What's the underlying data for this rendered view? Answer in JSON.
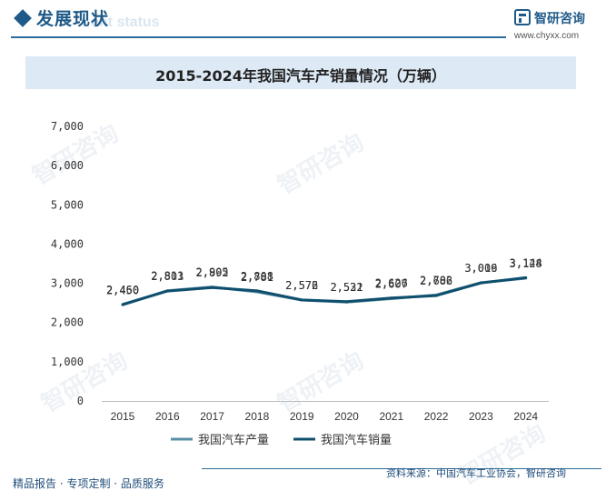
{
  "header": {
    "title_cn": "发展现状",
    "title_en": "ent status",
    "logo_name": "智研咨询",
    "logo_url": "www.chyxx.com"
  },
  "chart_title": "2015-2024年我国汽车产销量情况（万辆）",
  "chart_data": {
    "type": "line",
    "title": "2015-2024年我国汽车产销量情况（万辆）",
    "categories": [
      "2015",
      "2016",
      "2017",
      "2018",
      "2019",
      "2020",
      "2021",
      "2022",
      "2023",
      "2024"
    ],
    "ylim": [
      0,
      7000
    ],
    "yticks": [
      "0",
      "1,000",
      "2,000",
      "3,000",
      "4,000",
      "5,000",
      "6,000",
      "7,000"
    ],
    "grid": false,
    "legend_position": "bottom",
    "series": [
      {
        "name": "我国汽车产量",
        "color": "#5b8fa3",
        "values": [
          2450,
          2811,
          2905,
          2781,
          2572,
          2522,
          2607,
          2702,
          3016,
          3128
        ],
        "labels": [
          "2,450",
          "2,811",
          "2,905",
          "2,781",
          "2,572",
          "2,522",
          "2,607",
          "2,702",
          "3,016",
          "3,128"
        ]
      },
      {
        "name": "我国汽车销量",
        "color": "#0f4f6e",
        "values": [
          2460,
          2803,
          2892,
          2808,
          2576,
          2531,
          2626,
          2686,
          3009,
          3144
        ],
        "labels": [
          "2,460",
          "2,803",
          "2,892",
          "2,808",
          "2,576",
          "2,531",
          "2,626",
          "2,686",
          "3,009",
          "3,144"
        ]
      }
    ]
  },
  "footer": {
    "left": "精品报告 · 专项定制 · 品质服务",
    "source": "资料来源：中国汽车工业协会，智研咨询"
  },
  "watermark": "智研咨询"
}
